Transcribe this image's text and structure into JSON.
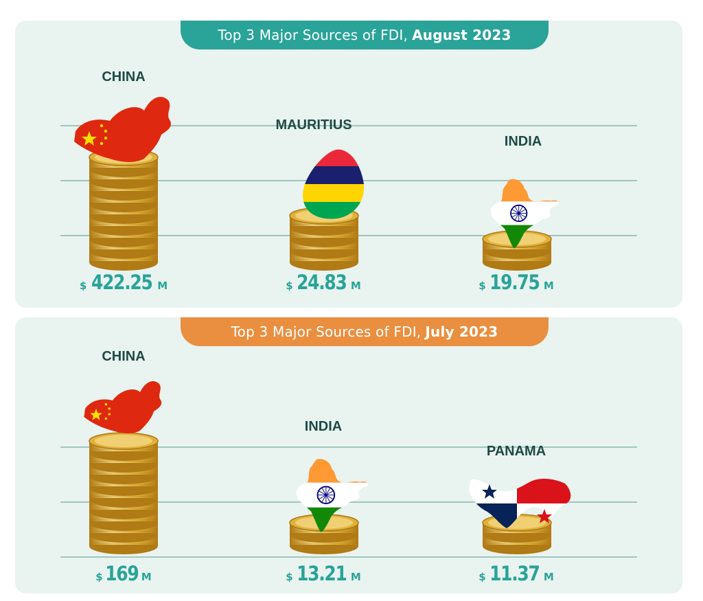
{
  "colors": {
    "panel_bg": "#e9f3f0",
    "aug_banner": "#2aa398",
    "jul_banner": "#e98f3f",
    "gridline": "#9fc6bd",
    "label_text": "#1e4a44",
    "value_text": "#2aa398",
    "coin_dark": "#b07a14",
    "coin_mid": "#e0b23c",
    "coin_light": "#f6dd8a"
  },
  "panels": [
    {
      "id": "aug",
      "banner_prefix": "Top 3 Major Sources of FDI,",
      "banner_period": "August 2023",
      "items": [
        {
          "country": "CHINA",
          "currency": "$",
          "amount": "422.25",
          "unit": "M",
          "value": 422.25,
          "flag": "china-flag-icon"
        },
        {
          "country": "MAURITIUS",
          "currency": "$",
          "amount": "24.83",
          "unit": "M",
          "value": 24.83,
          "flag": "mauritius-flag-icon"
        },
        {
          "country": "INDIA",
          "currency": "$",
          "amount": "19.75",
          "unit": "M",
          "value": 19.75,
          "flag": "india-flag-icon"
        }
      ]
    },
    {
      "id": "jul",
      "banner_prefix": "Top 3 Major Sources of FDI,",
      "banner_period": "July 2023",
      "items": [
        {
          "country": "CHINA",
          "currency": "$",
          "amount": "169",
          "unit": "M",
          "value": 169,
          "flag": "china-flag-icon"
        },
        {
          "country": "INDIA",
          "currency": "$",
          "amount": "13.21",
          "unit": "M",
          "value": 13.21,
          "flag": "india-flag-icon"
        },
        {
          "country": "PANAMA",
          "currency": "$",
          "amount": "11.37",
          "unit": "M",
          "value": 11.37,
          "flag": "panama-flag-icon"
        }
      ]
    }
  ],
  "chart_data": [
    {
      "type": "bar",
      "title": "Top 3 Major Sources of FDI, August 2023",
      "categories": [
        "CHINA",
        "MAURITIUS",
        "INDIA"
      ],
      "values": [
        422.25,
        24.83,
        19.75
      ],
      "units": "$M"
    },
    {
      "type": "bar",
      "title": "Top 3 Major Sources of FDI, July 2023",
      "categories": [
        "CHINA",
        "INDIA",
        "PANAMA"
      ],
      "values": [
        169,
        13.21,
        11.37
      ],
      "units": "$M"
    }
  ]
}
